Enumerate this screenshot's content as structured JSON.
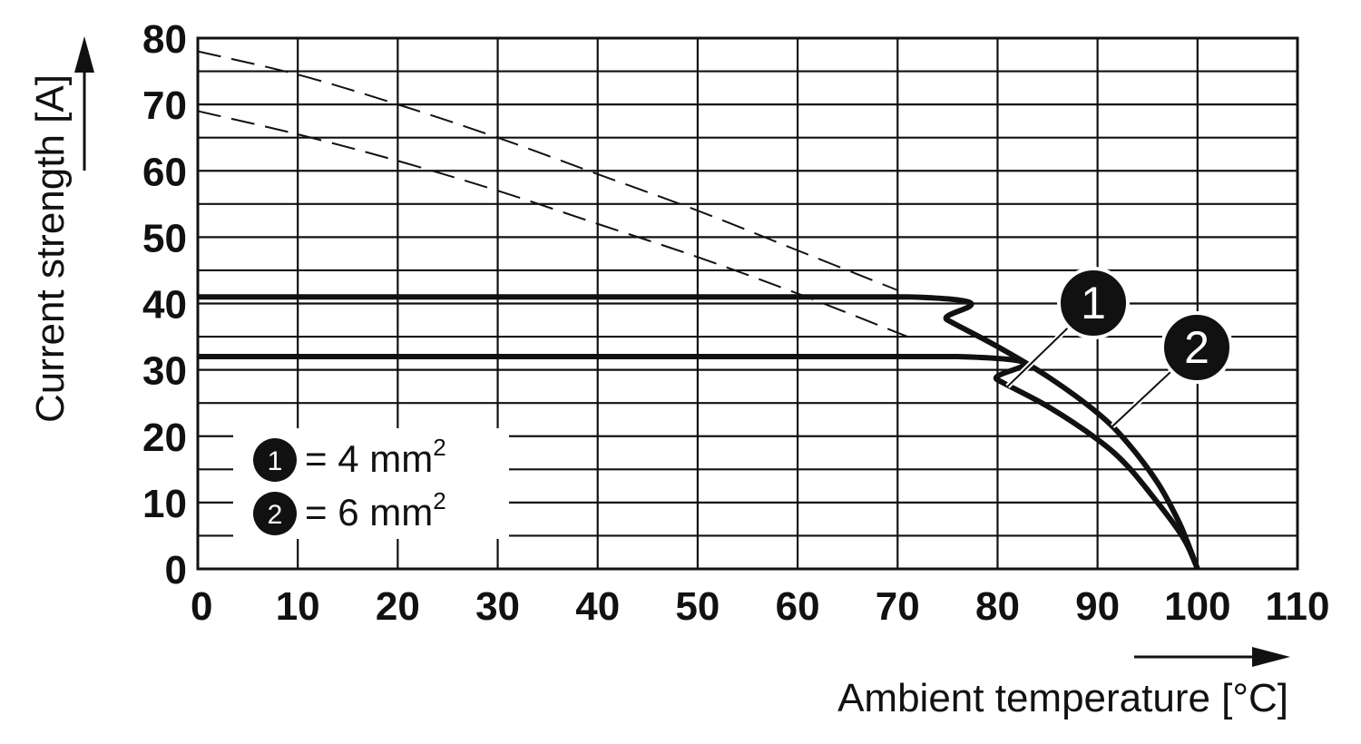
{
  "chart_data": {
    "type": "line",
    "xlabel": "Ambient temperature [°C]",
    "ylabel": "Current strength [A]",
    "xlim": [
      0,
      110
    ],
    "ylim": [
      0,
      80
    ],
    "x_ticks": [
      "0",
      "10",
      "20",
      "30",
      "40",
      "50",
      "60",
      "70",
      "80",
      "90",
      "100",
      "110"
    ],
    "y_ticks": [
      "0",
      "10",
      "20",
      "30",
      "40",
      "50",
      "60",
      "70",
      "80"
    ],
    "grid": true,
    "minor_grid_y": 5,
    "legend_position": "bottom-left",
    "legend": [
      {
        "marker": "1",
        "eq": "=",
        "value": "4 mm",
        "sup": "2"
      },
      {
        "marker": "2",
        "eq": "=",
        "value": "6 mm",
        "sup": "2"
      }
    ],
    "series": [
      {
        "marker": "1",
        "style": "solid",
        "x": [
          0,
          76,
          80,
          85,
          90,
          93,
          96,
          98,
          99,
          100
        ],
        "y": [
          32,
          32,
          28.5,
          24.5,
          19.5,
          15.5,
          10,
          6,
          3.5,
          0
        ]
      },
      {
        "marker": "2",
        "style": "solid",
        "x": [
          0,
          71,
          75,
          80,
          85,
          90,
          93,
          96,
          98,
          99,
          100
        ],
        "y": [
          41,
          41,
          37.5,
          33.5,
          29,
          23.5,
          19,
          13,
          7.5,
          4,
          0
        ]
      },
      {
        "marker": "1",
        "style": "dashed",
        "x": [
          0,
          10,
          20,
          30,
          40,
          50,
          60,
          71
        ],
        "y": [
          69,
          65.5,
          61.5,
          57,
          52,
          47,
          41.5,
          35
        ]
      },
      {
        "marker": "2",
        "style": "dashed",
        "x": [
          0,
          10,
          20,
          30,
          40,
          50,
          60,
          70
        ],
        "y": [
          78,
          74.5,
          70,
          65,
          59.5,
          54,
          48,
          42
        ]
      }
    ],
    "callouts": [
      {
        "marker": "1",
        "anchor_x": 81,
        "anchor_y": 27.5
      },
      {
        "marker": "2",
        "anchor_x": 91.5,
        "anchor_y": 21.5
      }
    ]
  }
}
